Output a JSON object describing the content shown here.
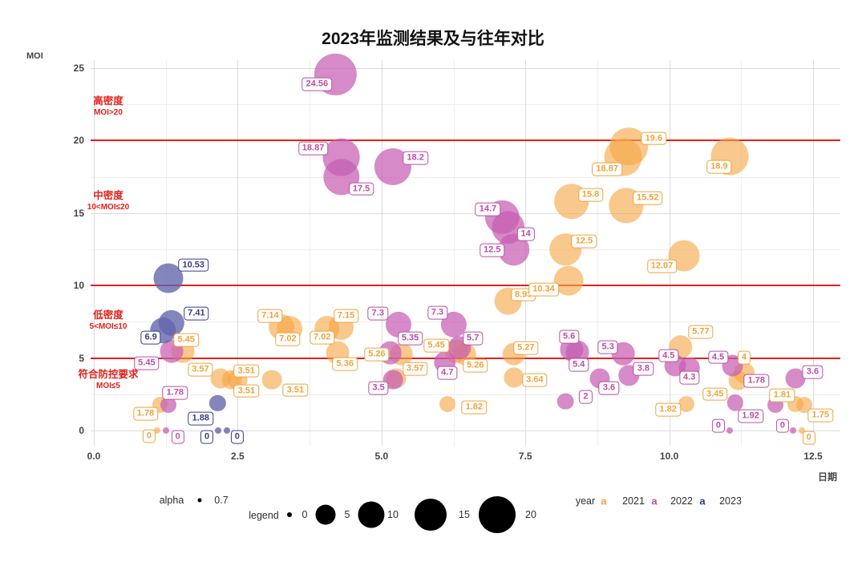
{
  "title": "2023年监测结果及与往年对比",
  "chart_data": {
    "type": "scatter",
    "title": "2023年监测结果及与往年对比",
    "xlabel": "日期",
    "ylabel": "MOI",
    "xlim": [
      0,
      13
    ],
    "ylim": [
      0,
      25.5
    ],
    "x_ticks": [
      "0.0",
      "2.5",
      "5.0",
      "7.5",
      "10.0",
      "12.5"
    ],
    "y_ticks": [
      "0",
      "5",
      "10",
      "15",
      "20",
      "25"
    ],
    "grid": "major+minor",
    "ref_lines": [
      5,
      10,
      20
    ],
    "ref_color": "#e2211c",
    "zones": [
      {
        "name": "高密度",
        "range": "MOI>20",
        "y": 22.6
      },
      {
        "name": "中密度",
        "range": "10<MOI≤20",
        "y": 16.1
      },
      {
        "name": "低密度",
        "range": "5<MOI≤10",
        "y": 7.85
      },
      {
        "name": "符合防控要求",
        "range": "MOI≤5",
        "y": 3.75
      }
    ],
    "zone_color": "#e2211c",
    "series": [
      {
        "name": "2021",
        "fill": "rgba(246,166,70,0.62)",
        "label_color": "#eda43c",
        "points": [
          {
            "x": 1.1,
            "v": 0,
            "label": "0",
            "dx": -10,
            "dy": 7
          },
          {
            "x": 1.15,
            "v": 1.78,
            "label": "1.78",
            "dx": -18,
            "dy": 11
          },
          {
            "x": 1.55,
            "v": 5.45,
            "label": "5.45",
            "dx": 4,
            "dy": -14
          },
          {
            "x": 2.2,
            "v": 3.57,
            "label": "3.57",
            "dx": -25,
            "dy": -11
          },
          {
            "x": 2.4,
            "v": 3.51,
            "label": "3.51",
            "dx": 18,
            "dy": -11
          },
          {
            "x": 2.5,
            "v": 3.51,
            "label": "3.51",
            "dx": 11,
            "dy": 14
          },
          {
            "x": 3.1,
            "v": 3.51,
            "label": "3.51",
            "dx": 29,
            "dy": 13
          },
          {
            "x": 3.26,
            "v": 7.14,
            "label": "7.14",
            "dx": -14,
            "dy": -14
          },
          {
            "x": 3.4,
            "v": 7.02,
            "label": "7.02",
            "dx": -2,
            "dy": 13
          },
          {
            "x": 4.05,
            "v": 7.02,
            "label": "7.02",
            "dx": -6,
            "dy": 11
          },
          {
            "x": 4.3,
            "v": 7.15,
            "label": "7.15",
            "dx": 6,
            "dy": -14
          },
          {
            "x": 4.24,
            "v": 5.36,
            "label": "5.36",
            "dx": 9,
            "dy": 14
          },
          {
            "x": 5.35,
            "v": 5.26,
            "label": "5.26",
            "dx": -31,
            "dy": 0
          },
          {
            "x": 5.25,
            "v": 3.57,
            "label": "3.57",
            "dx": 24,
            "dy": -12
          },
          {
            "x": 6.3,
            "v": 5.45,
            "label": "5.45",
            "dx": -25,
            "dy": -7
          },
          {
            "x": 6.45,
            "v": 5.26,
            "label": "5.26",
            "dx": 13,
            "dy": 14
          },
          {
            "x": 6.15,
            "v": 1.82,
            "label": "1.82",
            "dx": 33,
            "dy": 4
          },
          {
            "x": 7.3,
            "v": 5.27,
            "label": "5.27",
            "dx": 15,
            "dy": -8
          },
          {
            "x": 7.3,
            "v": 3.64,
            "label": "3.64",
            "dx": 26,
            "dy": 3
          },
          {
            "x": 7.2,
            "v": 8.93,
            "label": "8.93",
            "dx": 19,
            "dy": -8
          },
          {
            "x": 8.25,
            "v": 10.34,
            "label": "10.34",
            "dx": -31,
            "dy": 11
          },
          {
            "x": 8.2,
            "v": 12.5,
            "label": "12.5",
            "dx": 23,
            "dy": -10
          },
          {
            "x": 8.3,
            "v": 15.8,
            "label": "15.8",
            "dx": 24,
            "dy": -8
          },
          {
            "x": 9.2,
            "v": 18.87,
            "label": "18.87",
            "dx": -20,
            "dy": 15
          },
          {
            "x": 9.3,
            "v": 19.6,
            "label": "19.6",
            "dx": 31,
            "dy": -10
          },
          {
            "x": 9.25,
            "v": 15.52,
            "label": "15.52",
            "dx": 27,
            "dy": -9
          },
          {
            "x": 10.25,
            "v": 12.07,
            "label": "12.07",
            "dx": -27,
            "dy": 13
          },
          {
            "x": 11.05,
            "v": 18.9,
            "label": "18.9",
            "dx": -13,
            "dy": 13
          },
          {
            "x": 10.2,
            "v": 5.77,
            "label": "5.77",
            "dx": 25,
            "dy": -19
          },
          {
            "x": 11.3,
            "v": 4,
            "label": "4",
            "dx": 0,
            "dy": -19
          },
          {
            "x": 11.2,
            "v": 3.45,
            "label": "3.45",
            "dx": -29,
            "dy": 17
          },
          {
            "x": 10.3,
            "v": 1.82,
            "label": "1.82",
            "dx": -23,
            "dy": 7
          },
          {
            "x": 12.2,
            "v": 1.81,
            "label": "1.81",
            "dx": -17,
            "dy": -11
          },
          {
            "x": 12.35,
            "v": 1.75,
            "label": "1.75",
            "dx": 20,
            "dy": 13
          },
          {
            "x": 12.3,
            "v": 0,
            "label": "0",
            "dx": 9,
            "dy": 9
          }
        ]
      },
      {
        "name": "2022",
        "fill": "rgba(198,93,179,0.72)",
        "label_color": "#bb4fa5",
        "points": [
          {
            "x": 1.25,
            "v": 0,
            "label": "0",
            "dx": 15,
            "dy": 8
          },
          {
            "x": 1.3,
            "v": 1.78,
            "label": "1.78",
            "dx": 8,
            "dy": -15
          },
          {
            "x": 1.35,
            "v": 5.45,
            "label": "5.45",
            "dx": -31,
            "dy": 15
          },
          {
            "x": 4.2,
            "v": 24.56,
            "label": "24.56",
            "dx": -23,
            "dy": 12
          },
          {
            "x": 4.3,
            "v": 18.87,
            "label": "18.87",
            "dx": -35,
            "dy": -11
          },
          {
            "x": 4.3,
            "v": 17.5,
            "label": "17.5",
            "dx": 25,
            "dy": 15
          },
          {
            "x": 5.2,
            "v": 18.2,
            "label": "18.2",
            "dx": 28,
            "dy": -11
          },
          {
            "x": 7.1,
            "v": 14.7,
            "label": "14.7",
            "dx": -18,
            "dy": -10
          },
          {
            "x": 7.2,
            "v": 14,
            "label": "14",
            "dx": 22,
            "dy": 8
          },
          {
            "x": 7.3,
            "v": 12.5,
            "label": "12.5",
            "dx": -27,
            "dy": 1
          },
          {
            "x": 5.3,
            "v": 7.3,
            "label": "7.3",
            "dx": -26,
            "dy": -14
          },
          {
            "x": 6.25,
            "v": 7.3,
            "label": "7.3",
            "dx": -20,
            "dy": -15
          },
          {
            "x": 5.15,
            "v": 5.35,
            "label": "5.35",
            "dx": 25,
            "dy": -18
          },
          {
            "x": 5.2,
            "v": 3.5,
            "label": "3.5",
            "dx": -18,
            "dy": 10
          },
          {
            "x": 6.35,
            "v": 5.7,
            "label": "5.7",
            "dx": 17,
            "dy": -12
          },
          {
            "x": 6.1,
            "v": 4.7,
            "label": "4.7",
            "dx": 3,
            "dy": 13
          },
          {
            "x": 8.3,
            "v": 5.6,
            "label": "5.6",
            "dx": -3,
            "dy": -16
          },
          {
            "x": 8.4,
            "v": 5.4,
            "label": "5.4",
            "dx": 2,
            "dy": 16
          },
          {
            "x": 8.2,
            "v": 2,
            "label": "2",
            "dx": 25,
            "dy": -6
          },
          {
            "x": 9.2,
            "v": 5.3,
            "label": "5.3",
            "dx": -19,
            "dy": -8
          },
          {
            "x": 9.3,
            "v": 3.8,
            "label": "3.8",
            "dx": 18,
            "dy": -8
          },
          {
            "x": 8.8,
            "v": 3.6,
            "label": "3.6",
            "dx": 11,
            "dy": 12
          },
          {
            "x": 10.1,
            "v": 4.5,
            "label": "4.5",
            "dx": -8,
            "dy": -12
          },
          {
            "x": 10.35,
            "v": 4.3,
            "label": "4.3",
            "dx": 0,
            "dy": 12
          },
          {
            "x": 11.1,
            "v": 4.5,
            "label": "4.5",
            "dx": -18,
            "dy": -10
          },
          {
            "x": 11.15,
            "v": 1.92,
            "label": "1.92",
            "dx": 19,
            "dy": 17
          },
          {
            "x": 11.85,
            "v": 1.78,
            "label": "1.78",
            "dx": -24,
            "dy": -30
          },
          {
            "x": 12.2,
            "v": 3.6,
            "label": "3.6",
            "dx": 21,
            "dy": -8
          },
          {
            "x": 11.05,
            "v": 0,
            "label": "0",
            "dx": -14,
            "dy": -6
          },
          {
            "x": 12.15,
            "v": 0,
            "label": "0",
            "dx": -13,
            "dy": -6
          }
        ]
      },
      {
        "name": "2023",
        "fill": "rgba(96,100,170,0.78)",
        "label_color": "#383d85",
        "points": [
          {
            "x": 1.3,
            "v": 10.53,
            "label": "10.53",
            "dx": 31,
            "dy": -16
          },
          {
            "x": 1.35,
            "v": 7.41,
            "label": "7.41",
            "dx": 31,
            "dy": -12
          },
          {
            "x": 1.2,
            "v": 6.9,
            "label": "6.9",
            "dx": -15,
            "dy": 9
          },
          {
            "x": 2.15,
            "v": 1.88,
            "label": "1.88",
            "dx": -21,
            "dy": 19
          },
          {
            "x": 2.16,
            "v": 0,
            "label": "0",
            "dx": -14,
            "dy": 8
          },
          {
            "x": 2.31,
            "v": 0,
            "label": "0",
            "dx": 13,
            "dy": 8
          }
        ]
      }
    ],
    "legend": {
      "alpha_label": "alpha",
      "alpha_value": "0.7",
      "size_label": "legend",
      "sizes": [
        "0",
        "5",
        "10",
        "15",
        "20"
      ],
      "year_label": "year",
      "year_key": "a",
      "years": [
        {
          "label": "2021",
          "color": "#eda43c"
        },
        {
          "label": "2022",
          "color": "#bb4fa5"
        },
        {
          "label": "2023",
          "color": "#383d85"
        }
      ]
    }
  }
}
